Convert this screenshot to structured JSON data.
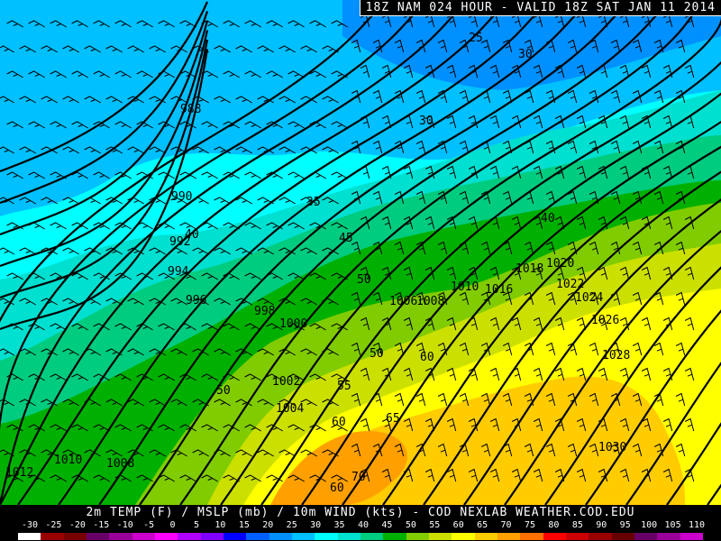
{
  "header": {
    "title": "18Z NAM 024 HOUR - VALID 18Z SAT JAN 11 2014"
  },
  "footer": {
    "product": "2m TEMP (F) / MSLP (mb) / 10m WIND (kts) - COD NEXLAB   WEATHER.COD.EDU"
  },
  "legend": {
    "ticks": [
      "-30",
      "-25",
      "-20",
      "-15",
      "-10",
      "-5",
      "0",
      "5",
      "10",
      "15",
      "20",
      "25",
      "30",
      "35",
      "40",
      "45",
      "50",
      "55",
      "60",
      "65",
      "70",
      "75",
      "80",
      "85",
      "90",
      "95",
      "100",
      "105",
      "110"
    ],
    "colors": [
      "#ffffff",
      "#990000",
      "#770000",
      "#660066",
      "#990099",
      "#cc00cc",
      "#ff00ff",
      "#b000ff",
      "#8000ff",
      "#0000ff",
      "#0060ff",
      "#0090ff",
      "#00c0ff",
      "#00ffff",
      "#00e0d0",
      "#00cc80",
      "#00b000",
      "#80cc00",
      "#cce000",
      "#ffff00",
      "#ffcc00",
      "#ffa000",
      "#ff7000",
      "#ff0000",
      "#cc0000",
      "#990000",
      "#660000",
      "#660066",
      "#990099",
      "#cc00cc"
    ]
  },
  "map": {
    "isobar_labels": [
      "988",
      "990",
      "992",
      "994",
      "996",
      "998",
      "1000",
      "1002",
      "1004",
      "1006",
      "1008",
      "1010",
      "1012",
      "1016",
      "1018",
      "1020",
      "1022",
      "1024",
      "1026",
      "1028",
      "1030",
      "1010",
      "1008"
    ],
    "temp_labels": [
      "25",
      "30",
      "30",
      "35",
      "40",
      "40",
      "45",
      "50",
      "50",
      "50",
      "55",
      "60",
      "60",
      "60",
      "65",
      "70"
    ]
  }
}
